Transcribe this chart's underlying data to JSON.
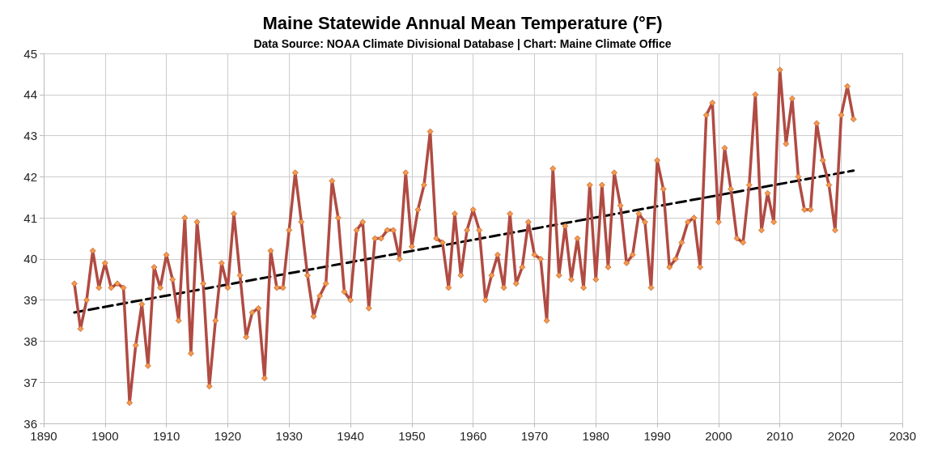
{
  "chart_data": {
    "type": "line",
    "title": "Maine Statewide Annual Mean Temperature (°F)",
    "subtitle": "Data Source: NOAA Climate Divisional Database | Chart: Maine Climate Office",
    "x": [
      1895,
      1896,
      1897,
      1898,
      1899,
      1900,
      1901,
      1902,
      1903,
      1904,
      1905,
      1906,
      1907,
      1908,
      1909,
      1910,
      1911,
      1912,
      1913,
      1914,
      1915,
      1916,
      1917,
      1918,
      1919,
      1920,
      1921,
      1922,
      1923,
      1924,
      1925,
      1926,
      1927,
      1928,
      1929,
      1930,
      1931,
      1932,
      1933,
      1934,
      1935,
      1936,
      1937,
      1938,
      1939,
      1940,
      1941,
      1942,
      1943,
      1944,
      1945,
      1946,
      1947,
      1948,
      1949,
      1950,
      1951,
      1952,
      1953,
      1954,
      1955,
      1956,
      1957,
      1958,
      1959,
      1960,
      1961,
      1962,
      1963,
      1964,
      1965,
      1966,
      1967,
      1968,
      1969,
      1970,
      1971,
      1972,
      1973,
      1974,
      1975,
      1976,
      1977,
      1978,
      1979,
      1980,
      1981,
      1982,
      1983,
      1984,
      1985,
      1986,
      1987,
      1988,
      1989,
      1990,
      1991,
      1992,
      1993,
      1994,
      1995,
      1996,
      1997,
      1998,
      1999,
      2000,
      2001,
      2002,
      2003,
      2004,
      2005,
      2006,
      2007,
      2008,
      2009,
      2010,
      2011,
      2012,
      2013,
      2014,
      2015,
      2016,
      2017,
      2018,
      2019,
      2020,
      2021,
      2022
    ],
    "series": [
      {
        "color": "#b04b43",
        "marker": "diamond",
        "line_style": "solid",
        "values": [
          39.4,
          38.3,
          39.0,
          40.2,
          39.3,
          39.9,
          39.3,
          39.4,
          39.3,
          36.5,
          37.9,
          38.9,
          37.4,
          39.8,
          39.3,
          40.1,
          39.5,
          38.5,
          41.0,
          37.7,
          40.9,
          39.4,
          36.9,
          38.5,
          39.9,
          39.3,
          41.1,
          39.6,
          38.1,
          38.7,
          38.8,
          37.1,
          40.2,
          39.3,
          39.3,
          40.7,
          42.1,
          40.9,
          39.6,
          38.6,
          39.1,
          39.4,
          41.9,
          41.0,
          39.2,
          39.0,
          40.7,
          40.9,
          38.8,
          40.5,
          40.5,
          40.7,
          40.7,
          40.0,
          42.1,
          40.3,
          41.2,
          41.8,
          43.1,
          40.5,
          40.4,
          39.3,
          41.1,
          39.6,
          40.7,
          41.2,
          40.7,
          39.0,
          39.6,
          40.1,
          39.3,
          41.1,
          39.4,
          39.8,
          40.9,
          40.1,
          40.0,
          38.5,
          42.2,
          39.6,
          40.8,
          39.5,
          40.5,
          39.3,
          41.8,
          39.5,
          41.8,
          39.8,
          42.1,
          41.3,
          39.9,
          40.1,
          41.1,
          40.9,
          39.3,
          42.4,
          41.7,
          39.8,
          40.0,
          40.4,
          40.9,
          41.0,
          39.8,
          43.5,
          43.8,
          40.9,
          42.7,
          41.7,
          40.5,
          40.4,
          41.8,
          44.0,
          40.7,
          41.6,
          40.9,
          44.6,
          42.8,
          43.9,
          42.0,
          41.2,
          41.2,
          43.3,
          42.4,
          41.8,
          40.7,
          43.5,
          44.2,
          43.4
        ]
      },
      {
        "color": "#000000",
        "marker": "none",
        "line_style": "dashed",
        "x": [
          1895,
          2022
        ],
        "values": [
          38.7,
          42.15
        ]
      }
    ],
    "xlim": [
      1890,
      2030
    ],
    "xticks": [
      1890,
      1900,
      1910,
      1920,
      1930,
      1940,
      1950,
      1960,
      1970,
      1980,
      1990,
      2000,
      2010,
      2020,
      2030
    ],
    "ylim": [
      36,
      45
    ],
    "yticks": [
      36,
      37,
      38,
      39,
      40,
      41,
      42,
      43,
      44,
      45
    ],
    "grid": true
  }
}
